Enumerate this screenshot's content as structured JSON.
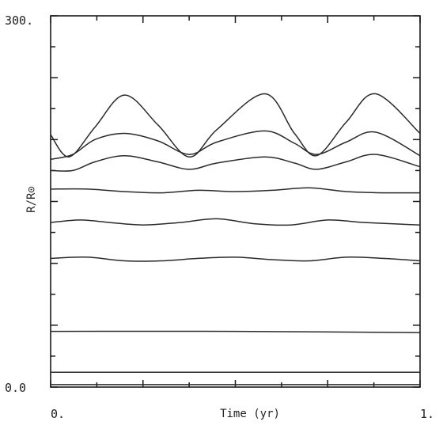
{
  "chart_data": {
    "type": "line",
    "xlabel": "Time (yr)",
    "ylabel": "R/R⊙",
    "xlim": [
      0,
      1
    ],
    "ylim": [
      0,
      300
    ],
    "x_tick_labels": [
      "0.",
      "1."
    ],
    "y_tick_labels": [
      "0.0",
      "300."
    ],
    "grid": false,
    "series": [
      {
        "x": [
          0,
          0.05,
          0.12,
          0.2,
          0.29,
          0.375,
          0.45,
          0.58,
          0.66,
          0.72,
          0.8,
          0.88,
          1.0
        ],
        "y": [
          204,
          186,
          210,
          236,
          212,
          186,
          208,
          237,
          205,
          187,
          214,
          237,
          205
        ]
      },
      {
        "x": [
          0,
          0.06,
          0.12,
          0.2,
          0.29,
          0.375,
          0.45,
          0.58,
          0.66,
          0.72,
          0.8,
          0.88,
          1.0
        ],
        "y": [
          184,
          188,
          200,
          205,
          199,
          188,
          198,
          207,
          197,
          188,
          198,
          206,
          187
        ]
      },
      {
        "x": [
          0,
          0.06,
          0.12,
          0.2,
          0.29,
          0.375,
          0.45,
          0.58,
          0.66,
          0.72,
          0.8,
          0.88,
          1.0
        ],
        "y": [
          175,
          175,
          182,
          187,
          182,
          176,
          181,
          186,
          181,
          176,
          182,
          188,
          178
        ]
      },
      {
        "x": [
          0,
          0.1,
          0.2,
          0.3,
          0.4,
          0.5,
          0.6,
          0.7,
          0.8,
          0.9,
          1.0
        ],
        "y": [
          160,
          160,
          158,
          157,
          159,
          158,
          159,
          161,
          158,
          157,
          157
        ]
      },
      {
        "x": [
          0,
          0.08,
          0.16,
          0.25,
          0.35,
          0.45,
          0.55,
          0.65,
          0.75,
          0.85,
          1.0
        ],
        "y": [
          133,
          135,
          133,
          131,
          133,
          136,
          132,
          131,
          135,
          133,
          131
        ]
      },
      {
        "x": [
          0,
          0.1,
          0.2,
          0.3,
          0.4,
          0.5,
          0.6,
          0.7,
          0.8,
          0.9,
          1.0
        ],
        "y": [
          104,
          105,
          102,
          102,
          104,
          105,
          103,
          102,
          105,
          104,
          102
        ]
      },
      {
        "x": [
          0,
          0.5,
          1.0
        ],
        "y": [
          45,
          45,
          44
        ]
      },
      {
        "x": [
          0,
          0.5,
          1.0
        ],
        "y": [
          12,
          12,
          12
        ]
      },
      {
        "x": [
          0,
          0.5,
          1.0
        ],
        "y": [
          2,
          2,
          2
        ]
      }
    ]
  }
}
